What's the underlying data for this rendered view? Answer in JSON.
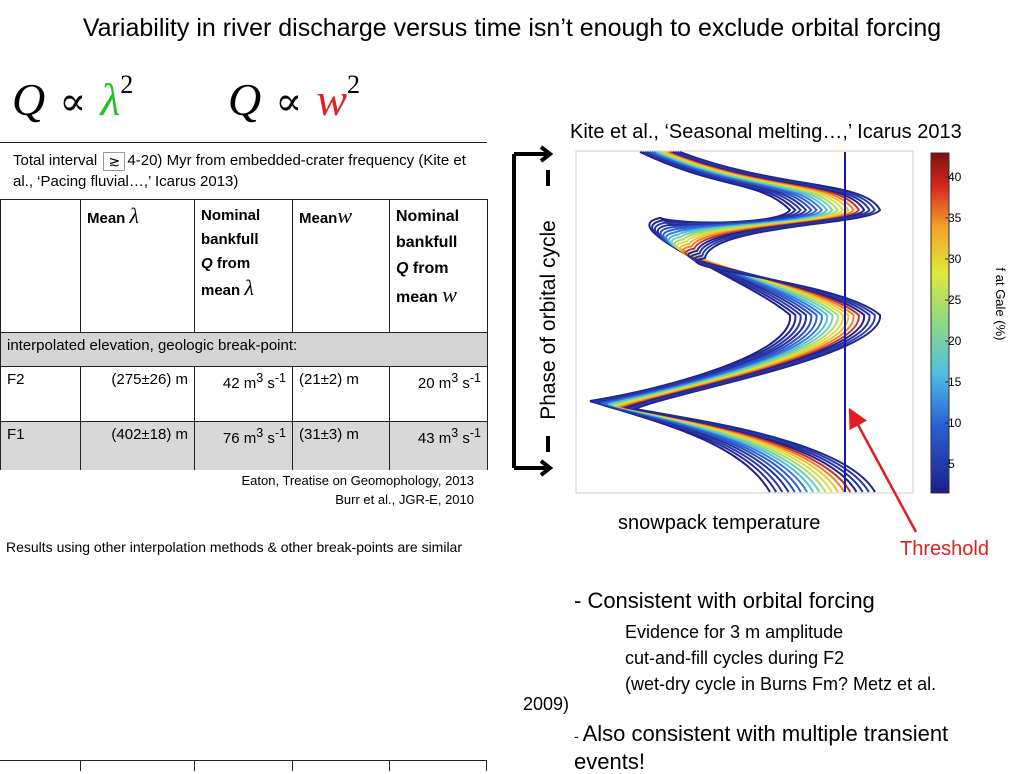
{
  "slide": {
    "title": "Variability in river discharge versus time isn’t enough to exclude orbital forcing",
    "equations": [
      {
        "lhs": "Q",
        "op": "∝",
        "var": "λ",
        "power": "2",
        "var_color": "#22c222"
      },
      {
        "lhs": "Q",
        "op": "∝",
        "var": "w",
        "power": "2",
        "var_color": "#e02020"
      }
    ],
    "total_interval": {
      "prefix": "Total interval",
      "symbol": "≳",
      "suffix": "4-20) Myr from embedded-crater frequency (Kite et al., ‘Pacing fluvial…,’ Icarus 2013)"
    },
    "table": {
      "headers": [
        {
          "text": "Mean",
          "sym": "λ"
        },
        {
          "text": "Nominal bankfull",
          "q": "Q",
          "from": " from mean",
          "sym": "λ"
        },
        {
          "text": "Mean",
          "sym": "w"
        },
        {
          "text": "Nominal bankfull",
          "q": "Q",
          "from": " from mean",
          "sym": "w"
        }
      ],
      "section": "interpolated elevation, geologic break-point:",
      "rows": [
        {
          "label": "F2",
          "mean_lambda": "(275±26) m",
          "q_lambda": "42 m",
          "mean_w": "(21±2) m",
          "q_w": "20 m"
        },
        {
          "label": "F1",
          "mean_lambda": "(402±18) m",
          "q_lambda": "76 m",
          "mean_w": "(31±3) m",
          "q_w": "43 m"
        }
      ],
      "unit_sup_a": "3",
      "unit_mid": " s",
      "unit_sup_b": "-1"
    },
    "references": [
      "Eaton, Treatise on Geomophology, 2013",
      "Burr et al., JGR-E, 2010"
    ],
    "results_note": "Results using other interpolation methods & other break-points are similar",
    "figure": {
      "citation": "Kite et al., ‘Seasonal melting…,’ Icarus 2013",
      "y_axis_label": "Phase of orbital cycle",
      "x_axis_label": "snowpack temperature",
      "colorbar_label": "f at Gale (%)",
      "colorbar_ticks": [
        "40",
        "35",
        "30",
        "25",
        "20",
        "15",
        "10",
        "5"
      ],
      "threshold_label": "Threshold",
      "threshold_color": "#e02020",
      "threshold_line_color": "#1a1aa0"
    },
    "bullets": {
      "point1": "- Consistent with orbital forcing",
      "sub1": "Evidence for 3 m amplitude",
      "sub2": "cut-and-fill cycles during F2",
      "sub3": "(wet-dry cycle in Burns Fm? Metz et al.",
      "sub3_wrap": "2009)",
      "point2_dash": "- ",
      "point2": "Also consistent with multiple transient events!"
    }
  }
}
